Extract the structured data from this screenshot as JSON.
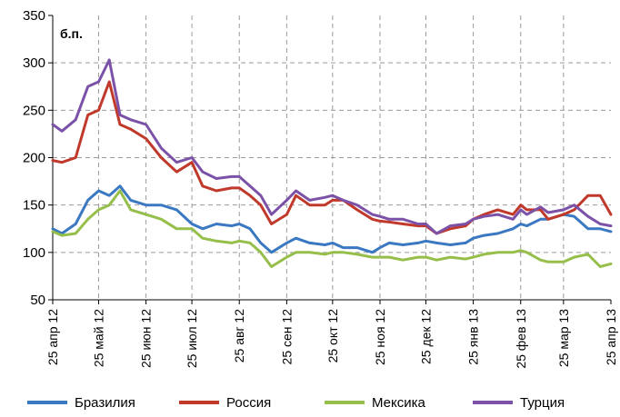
{
  "chart_data": {
    "type": "line",
    "unit_label": "б.п.",
    "ylim": [
      50,
      350
    ],
    "yticks": [
      "50",
      "100",
      "150",
      "200",
      "250",
      "300",
      "350"
    ],
    "grid": true,
    "legend_position": "bottom",
    "x_start": "2012-04-25",
    "x_end": "2013-04-25",
    "x_tick_labels": [
      "25 апр 12",
      "25 май 12",
      "25 июн 12",
      "25 июл 12",
      "25 авг 12",
      "25 сен 12",
      "25 окт 12",
      "25 ноя 12",
      "25 дек 12",
      "25 янв 13",
      "25 фев 13",
      "25 мар 13",
      "25 апр 13"
    ],
    "x_dates": [
      "2012-04-25",
      "2012-05-25",
      "2012-06-25",
      "2012-07-25",
      "2012-08-25",
      "2012-09-25",
      "2012-10-25",
      "2012-11-25",
      "2012-12-25",
      "2013-01-25",
      "2013-02-25",
      "2013-03-25",
      "2013-04-25"
    ],
    "series": [
      {
        "name": "Бразилия",
        "color": "#3a78c2",
        "x": [
          "2012-04-25",
          "2012-05-01",
          "2012-05-10",
          "2012-05-18",
          "2012-05-25",
          "2012-06-01",
          "2012-06-08",
          "2012-06-15",
          "2012-06-25",
          "2012-07-05",
          "2012-07-15",
          "2012-07-25",
          "2012-08-01",
          "2012-08-10",
          "2012-08-20",
          "2012-08-25",
          "2012-09-01",
          "2012-09-08",
          "2012-09-15",
          "2012-09-25",
          "2012-10-01",
          "2012-10-10",
          "2012-10-20",
          "2012-10-25",
          "2012-11-01",
          "2012-11-10",
          "2012-11-20",
          "2012-11-25",
          "2012-12-01",
          "2012-12-10",
          "2012-12-20",
          "2012-12-25",
          "2013-01-01",
          "2013-01-10",
          "2013-01-20",
          "2013-01-25",
          "2013-02-01",
          "2013-02-10",
          "2013-02-20",
          "2013-02-25",
          "2013-03-01",
          "2013-03-10",
          "2013-03-15",
          "2013-03-25",
          "2013-04-01",
          "2013-04-10",
          "2013-04-18",
          "2013-04-25"
        ],
        "y": [
          125,
          120,
          130,
          155,
          165,
          160,
          170,
          155,
          150,
          150,
          145,
          130,
          125,
          130,
          128,
          130,
          125,
          110,
          100,
          110,
          115,
          110,
          108,
          110,
          105,
          105,
          100,
          105,
          110,
          108,
          110,
          112,
          110,
          108,
          110,
          115,
          118,
          120,
          125,
          130,
          128,
          135,
          135,
          140,
          138,
          125,
          125,
          122
        ]
      },
      {
        "name": "Россия",
        "color": "#c0392b",
        "x": [
          "2012-04-25",
          "2012-05-01",
          "2012-05-10",
          "2012-05-18",
          "2012-05-25",
          "2012-06-01",
          "2012-06-08",
          "2012-06-15",
          "2012-06-25",
          "2012-07-05",
          "2012-07-15",
          "2012-07-25",
          "2012-08-01",
          "2012-08-10",
          "2012-08-20",
          "2012-08-25",
          "2012-09-01",
          "2012-09-08",
          "2012-09-15",
          "2012-09-25",
          "2012-10-01",
          "2012-10-10",
          "2012-10-20",
          "2012-10-25",
          "2012-11-01",
          "2012-11-10",
          "2012-11-20",
          "2012-11-25",
          "2012-12-01",
          "2012-12-10",
          "2012-12-20",
          "2012-12-25",
          "2013-01-01",
          "2013-01-10",
          "2013-01-20",
          "2013-01-25",
          "2013-02-01",
          "2013-02-10",
          "2013-02-20",
          "2013-02-25",
          "2013-03-01",
          "2013-03-10",
          "2013-03-15",
          "2013-03-25",
          "2013-04-01",
          "2013-04-10",
          "2013-04-18",
          "2013-04-25"
        ],
        "y": [
          197,
          195,
          200,
          245,
          250,
          280,
          235,
          230,
          220,
          200,
          185,
          195,
          170,
          165,
          168,
          168,
          160,
          150,
          130,
          140,
          160,
          150,
          150,
          155,
          155,
          145,
          135,
          133,
          132,
          130,
          128,
          128,
          120,
          125,
          128,
          135,
          140,
          145,
          140,
          150,
          145,
          145,
          135,
          140,
          145,
          160,
          160,
          140
        ]
      },
      {
        "name": "Мексика",
        "color": "#95bf4a",
        "x": [
          "2012-04-25",
          "2012-05-01",
          "2012-05-10",
          "2012-05-18",
          "2012-05-25",
          "2012-06-01",
          "2012-06-08",
          "2012-06-15",
          "2012-06-25",
          "2012-07-05",
          "2012-07-15",
          "2012-07-25",
          "2012-08-01",
          "2012-08-10",
          "2012-08-20",
          "2012-08-25",
          "2012-09-01",
          "2012-09-08",
          "2012-09-15",
          "2012-09-25",
          "2012-10-01",
          "2012-10-10",
          "2012-10-20",
          "2012-10-25",
          "2012-11-01",
          "2012-11-10",
          "2012-11-20",
          "2012-11-25",
          "2012-12-01",
          "2012-12-10",
          "2012-12-20",
          "2012-12-25",
          "2013-01-01",
          "2013-01-10",
          "2013-01-20",
          "2013-01-25",
          "2013-02-01",
          "2013-02-10",
          "2013-02-20",
          "2013-02-25",
          "2013-03-01",
          "2013-03-10",
          "2013-03-15",
          "2013-03-25",
          "2013-04-01",
          "2013-04-10",
          "2013-04-18",
          "2013-04-25"
        ],
        "y": [
          122,
          118,
          120,
          135,
          145,
          150,
          165,
          145,
          140,
          135,
          125,
          125,
          115,
          112,
          110,
          112,
          110,
          100,
          85,
          95,
          100,
          100,
          98,
          100,
          100,
          98,
          95,
          95,
          95,
          92,
          95,
          95,
          92,
          95,
          93,
          95,
          98,
          100,
          100,
          102,
          100,
          92,
          90,
          90,
          95,
          98,
          85,
          88
        ]
      },
      {
        "name": "Турция",
        "color": "#7b52a8",
        "x": [
          "2012-04-25",
          "2012-05-01",
          "2012-05-10",
          "2012-05-18",
          "2012-05-25",
          "2012-06-01",
          "2012-06-08",
          "2012-06-15",
          "2012-06-25",
          "2012-07-05",
          "2012-07-15",
          "2012-07-25",
          "2012-08-01",
          "2012-08-10",
          "2012-08-20",
          "2012-08-25",
          "2012-09-01",
          "2012-09-08",
          "2012-09-15",
          "2012-09-25",
          "2012-10-01",
          "2012-10-10",
          "2012-10-20",
          "2012-10-25",
          "2012-11-01",
          "2012-11-10",
          "2012-11-20",
          "2012-11-25",
          "2012-12-01",
          "2012-12-10",
          "2012-12-20",
          "2012-12-25",
          "2013-01-01",
          "2013-01-10",
          "2013-01-20",
          "2013-01-25",
          "2013-02-01",
          "2013-02-10",
          "2013-02-20",
          "2013-02-25",
          "2013-03-01",
          "2013-03-10",
          "2013-03-15",
          "2013-03-25",
          "2013-04-01",
          "2013-04-10",
          "2013-04-18",
          "2013-04-25"
        ],
        "y": [
          235,
          228,
          240,
          275,
          280,
          303,
          245,
          240,
          235,
          210,
          195,
          200,
          185,
          178,
          180,
          180,
          170,
          160,
          140,
          155,
          165,
          155,
          158,
          160,
          155,
          150,
          140,
          138,
          135,
          135,
          130,
          130,
          120,
          128,
          130,
          135,
          138,
          140,
          135,
          145,
          140,
          148,
          142,
          145,
          150,
          138,
          130,
          128
        ]
      }
    ]
  }
}
